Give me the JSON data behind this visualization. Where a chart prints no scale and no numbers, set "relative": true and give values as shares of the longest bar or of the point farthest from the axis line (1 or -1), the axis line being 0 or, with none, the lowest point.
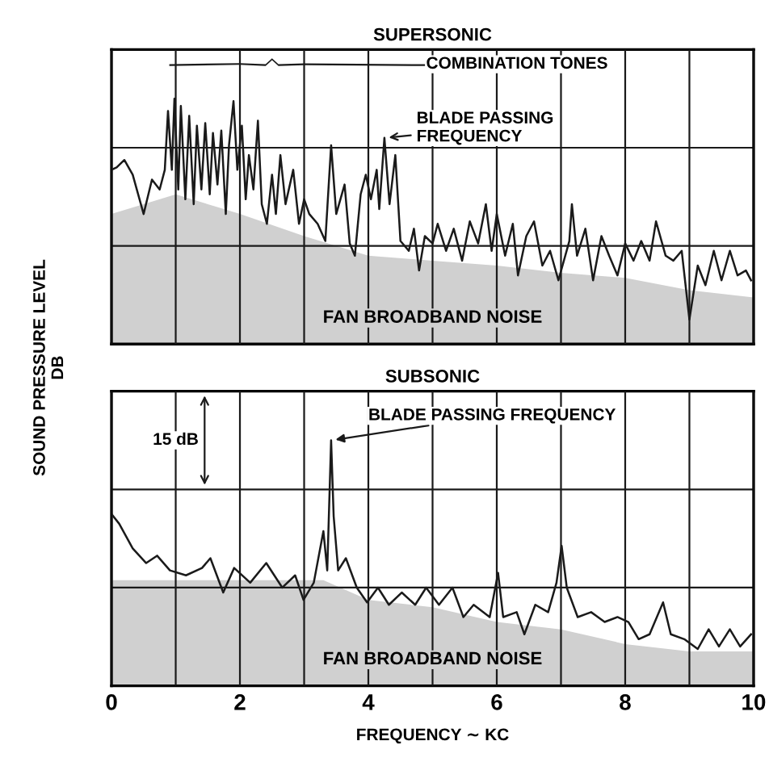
{
  "chart_data": [
    {
      "type": "line",
      "relative": true,
      "title": "SUPERSONIC",
      "ylabel": "SOUND PRESSURE LEVEL\nDB",
      "xlim": [
        0,
        10
      ],
      "xticks": [
        0,
        {
          "value": 1,
          "label": null
        },
        2,
        {
          "value": 3,
          "label": null
        },
        4,
        {
          "value": 5,
          "label": null
        },
        6,
        {
          "value": 7,
          "label": null
        },
        8,
        {
          "value": 9,
          "label": null
        },
        10
      ],
      "grid": true,
      "tick_labels": false,
      "annotations": [
        "COMBINATION TONES",
        {
          "text": "BLADE PASSING\nFREQUENCY",
          "x": 4.25,
          "y": 0.84
        },
        "FAN BROADBAND NOISE"
      ],
      "series": [
        {
          "type": "area",
          "color": "#d0d0d0",
          "x": [
            0,
            1,
            2,
            3,
            4,
            5,
            6,
            7,
            8,
            9,
            10
          ],
          "values": [
            0.53,
            0.61,
            0.53,
            0.44,
            0.36,
            0.34,
            0.32,
            0.29,
            0.27,
            0.22,
            0.19
          ]
        },
        {
          "color": "#1a1a1a",
          "x": [
            0,
            0.08,
            0.2,
            0.33,
            0.5,
            0.63,
            0.75,
            0.83,
            0.88,
            0.94,
            0.98,
            1.04,
            1.08,
            1.15,
            1.21,
            1.28,
            1.33,
            1.4,
            1.46,
            1.53,
            1.58,
            1.65,
            1.71,
            1.78,
            1.83,
            1.9,
            1.96,
            2.03,
            2.09,
            2.14,
            2.21,
            2.28,
            2.34,
            2.42,
            2.5,
            2.56,
            2.63,
            2.71,
            2.83,
            2.92,
            3.0,
            3.08,
            3.21,
            3.33,
            3.42,
            3.5,
            3.63,
            3.71,
            3.79,
            3.88,
            3.96,
            4.04,
            4.13,
            4.17,
            4.25,
            4.33,
            4.42,
            4.5,
            4.63,
            4.71,
            4.79,
            4.88,
            5.0,
            5.08,
            5.21,
            5.33,
            5.46,
            5.58,
            5.71,
            5.83,
            5.92,
            6.0,
            6.13,
            6.25,
            6.33,
            6.46,
            6.58,
            6.71,
            6.83,
            6.96,
            7.13,
            7.17,
            7.25,
            7.38,
            7.5,
            7.63,
            7.75,
            7.88,
            8.0,
            8.13,
            8.25,
            8.38,
            8.48,
            8.63,
            8.75,
            8.88,
            9.0,
            9.13,
            9.25,
            9.38,
            9.5,
            9.63,
            9.75,
            9.88,
            9.96
          ],
          "values": [
            0.71,
            0.72,
            0.75,
            0.69,
            0.53,
            0.67,
            0.63,
            0.71,
            0.95,
            0.71,
            1,
            0.63,
            0.97,
            0.59,
            0.93,
            0.57,
            0.89,
            0.63,
            0.9,
            0.61,
            0.86,
            0.65,
            0.87,
            0.53,
            0.81,
            0.99,
            0.71,
            0.89,
            0.59,
            0.77,
            0.63,
            0.91,
            0.57,
            0.49,
            0.69,
            0.53,
            0.77,
            0.57,
            0.71,
            0.49,
            0.59,
            0.53,
            0.49,
            0.42,
            0.81,
            0.53,
            0.65,
            0.41,
            0.36,
            0.61,
            0.69,
            0.59,
            0.71,
            0.55,
            0.84,
            0.57,
            0.77,
            0.42,
            0.38,
            0.47,
            0.3,
            0.44,
            0.41,
            0.49,
            0.38,
            0.47,
            0.34,
            0.5,
            0.41,
            0.57,
            0.38,
            0.53,
            0.36,
            0.49,
            0.28,
            0.44,
            0.5,
            0.32,
            0.38,
            0.26,
            0.42,
            0.57,
            0.36,
            0.47,
            0.26,
            0.44,
            0.36,
            0.28,
            0.41,
            0.34,
            0.42,
            0.34,
            0.5,
            0.36,
            0.34,
            0.38,
            0.1,
            0.32,
            0.24,
            0.38,
            0.26,
            0.38,
            0.28,
            0.3,
            0.26
          ]
        }
      ]
    },
    {
      "type": "line",
      "relative": true,
      "title": "SUBSONIC",
      "xlabel": "FREQUENCY ∼ KC",
      "xlim": [
        0,
        10
      ],
      "xticks": [
        0,
        {
          "value": 1,
          "label": null
        },
        2,
        {
          "value": 3,
          "label": null
        },
        4,
        {
          "value": 5,
          "label": null
        },
        6,
        {
          "value": 7,
          "label": null
        },
        8,
        {
          "value": 9,
          "label": null
        },
        10
      ],
      "grid": true,
      "tick_labels": "x",
      "annotations": [
        "15 dB",
        {
          "text": "BLADE PASSING FREQUENCY",
          "x": 3.42,
          "y": 1
        },
        "FAN BROADBAND NOISE"
      ],
      "series": [
        {
          "type": "area",
          "color": "#d0d0d0",
          "x": [
            0,
            1,
            2,
            3,
            3.3,
            4,
            5,
            6,
            7,
            8,
            9,
            10
          ],
          "values": [
            0.43,
            0.43,
            0.43,
            0.43,
            0.43,
            0.35,
            0.32,
            0.26,
            0.23,
            0.17,
            0.14,
            0.14
          ]
        },
        {
          "color": "#1a1a1a",
          "x": [
            0,
            0.12,
            0.33,
            0.54,
            0.71,
            0.91,
            1.16,
            1.41,
            1.54,
            1.74,
            1.91,
            2.16,
            2.41,
            2.66,
            2.86,
            2.99,
            3.15,
            3.3,
            3.36,
            3.42,
            3.46,
            3.53,
            3.65,
            3.82,
            3.98,
            4.15,
            4.32,
            4.52,
            4.73,
            4.9,
            5.1,
            5.31,
            5.48,
            5.64,
            5.89,
            6.02,
            6.1,
            6.31,
            6.43,
            6.6,
            6.8,
            6.93,
            7.01,
            7.09,
            7.26,
            7.47,
            7.68,
            7.88,
            8.05,
            8.21,
            8.38,
            8.59,
            8.71,
            8.92,
            9.13,
            9.3,
            9.46,
            9.63,
            9.79,
            9.96
          ],
          "values": [
            0.7,
            0.66,
            0.56,
            0.5,
            0.53,
            0.47,
            0.45,
            0.48,
            0.52,
            0.38,
            0.48,
            0.42,
            0.5,
            0.4,
            0.45,
            0.35,
            0.42,
            0.63,
            0.47,
            1,
            0.69,
            0.47,
            0.52,
            0.4,
            0.34,
            0.4,
            0.33,
            0.38,
            0.33,
            0.4,
            0.33,
            0.4,
            0.28,
            0.33,
            0.28,
            0.46,
            0.28,
            0.3,
            0.21,
            0.33,
            0.3,
            0.42,
            0.57,
            0.4,
            0.28,
            0.3,
            0.26,
            0.28,
            0.26,
            0.19,
            0.21,
            0.34,
            0.21,
            0.19,
            0.15,
            0.23,
            0.16,
            0.23,
            0.16,
            0.21
          ]
        }
      ]
    }
  ]
}
